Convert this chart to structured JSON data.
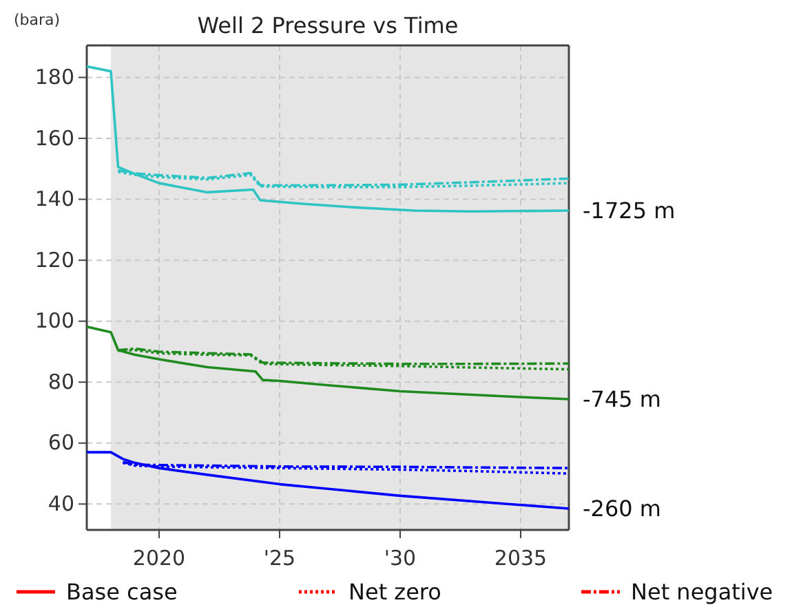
{
  "chart_data": {
    "type": "line",
    "title": "Well 2 Pressure vs Time",
    "ylabel": "(bara)",
    "xlim": [
      2017,
      2037
    ],
    "xticks": [
      {
        "value": 2020,
        "label": "2020"
      },
      {
        "value": 2025,
        "label": "'25"
      },
      {
        "value": 2030,
        "label": "'30"
      },
      {
        "value": 2035,
        "label": "2035"
      }
    ],
    "ylim": [
      31.5,
      190.5
    ],
    "yticks": [
      40,
      60,
      80,
      100,
      120,
      140,
      160,
      180
    ],
    "grid": true,
    "legend": "bottom",
    "marker": "none",
    "bands": [
      {
        "axis": "x",
        "from": 2018,
        "to": 2037,
        "color": "#e5e5e5"
      }
    ],
    "annotations": [
      "-1725 m",
      "-745 m",
      "-260 m"
    ],
    "series": [
      {
        "color": "#2ec4c4",
        "line_style": "solid",
        "x": [
          2017,
          2018,
          2018.3,
          2019,
          2020,
          2022,
          2023.9,
          2024.2,
          2026,
          2028,
          2030.6,
          2033,
          2037
        ],
        "values": [
          183.6,
          182,
          150.6,
          148.3,
          145.3,
          142.3,
          143.2,
          139.7,
          138.5,
          137.4,
          136.3,
          136,
          136.3
        ]
      },
      {
        "color": "#2ec4c4",
        "line_style": "dotted",
        "x": [
          2018.3,
          2019,
          2020,
          2022,
          2023.8,
          2024.2,
          2027,
          2030,
          2033,
          2037
        ],
        "values": [
          149,
          148,
          147.3,
          146.5,
          148,
          144.2,
          144,
          144,
          144.5,
          145.3
        ]
      },
      {
        "color": "#2ec4c4",
        "line_style": "dashdot",
        "x": [
          2018.3,
          2019,
          2020,
          2022,
          2023.8,
          2024.2,
          2027,
          2030,
          2033,
          2037
        ],
        "values": [
          149.5,
          148.5,
          147.9,
          147,
          148.6,
          144.6,
          144.6,
          144.8,
          145.6,
          146.8
        ]
      },
      {
        "color": "#1f8b1f",
        "line_style": "solid",
        "x": [
          2017,
          2018,
          2018.3,
          2019,
          2020,
          2022,
          2024,
          2024.3,
          2025,
          2027,
          2030,
          2035,
          2037
        ],
        "values": [
          98.2,
          96.4,
          90.5,
          89,
          87.5,
          84.9,
          83.5,
          80.7,
          80.4,
          79,
          77,
          75.1,
          74.4
        ]
      },
      {
        "color": "#1f8b1f",
        "line_style": "dotted",
        "x": [
          2018.3,
          2019,
          2020,
          2022,
          2023.8,
          2024.3,
          2027,
          2030,
          2033,
          2037
        ],
        "values": [
          90.3,
          90.5,
          89.5,
          89,
          88.8,
          86,
          85.6,
          85.3,
          84.8,
          84.2
        ]
      },
      {
        "color": "#1f8b1f",
        "line_style": "dashdot",
        "x": [
          2018.3,
          2019,
          2020,
          2022,
          2023.8,
          2024.3,
          2027,
          2030,
          2033,
          2037
        ],
        "values": [
          90.5,
          91,
          90,
          89.5,
          89.1,
          86.4,
          86.2,
          86,
          86,
          86.1
        ]
      },
      {
        "color": "#0000ff",
        "line_style": "solid",
        "x": [
          2017,
          2018,
          2018.5,
          2019,
          2020,
          2022,
          2025,
          2027,
          2030,
          2035,
          2037
        ],
        "values": [
          57,
          57,
          54.8,
          53.5,
          51.8,
          49.6,
          46.5,
          45,
          42.7,
          39.7,
          38.5
        ]
      },
      {
        "color": "#0000ff",
        "line_style": "dotted",
        "x": [
          2018.5,
          2019,
          2020,
          2025,
          2030,
          2033,
          2037
        ],
        "values": [
          53.5,
          52.6,
          52.3,
          51.8,
          51.3,
          50.8,
          50
        ]
      },
      {
        "color": "#0000ff",
        "line_style": "dashdot",
        "x": [
          2018.5,
          2019,
          2020,
          2025,
          2030,
          2033,
          2037
        ],
        "values": [
          53.8,
          52.9,
          52.8,
          52.3,
          52.2,
          52,
          51.8
        ]
      },
      {
        "name": "Base case",
        "color": "#ff0000",
        "line_style": "solid"
      },
      {
        "name": "Net zero",
        "color": "#ff0000",
        "line_style": "dotted"
      },
      {
        "name": "Net negative",
        "color": "#ff0000",
        "line_style": "dashdot"
      }
    ]
  }
}
